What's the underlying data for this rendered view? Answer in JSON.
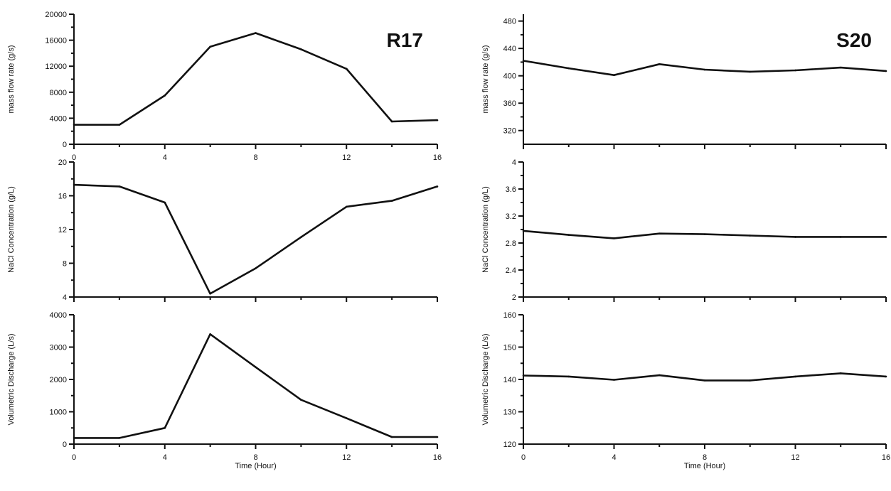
{
  "chart_data": [
    {
      "type": "line",
      "title": "R17",
      "xlabel": "",
      "ylabel": "mass flow rate (g/s)",
      "x": [
        0,
        2,
        4,
        6,
        8,
        10,
        12,
        14,
        16
      ],
      "xlim": [
        0,
        16
      ],
      "xticks": [
        "0",
        "4",
        "8",
        "12",
        "16"
      ],
      "ylim": [
        0,
        20000
      ],
      "yticks": [
        "0",
        "4000",
        "8000",
        "12000",
        "16000",
        "20000"
      ],
      "series": [
        {
          "values": [
            3000,
            3000,
            7500,
            15000,
            17100,
            14600,
            11600,
            3500,
            3700
          ]
        }
      ]
    },
    {
      "type": "line",
      "title": "",
      "xlabel": "",
      "ylabel": "NaCl Concentration (g/L)",
      "x": [
        0,
        2,
        4,
        6,
        8,
        10,
        12,
        14,
        16
      ],
      "xlim": [
        0,
        16
      ],
      "xticks": [],
      "ylim": [
        4,
        20
      ],
      "yticks": [
        "4",
        "8",
        "12",
        "16",
        "20"
      ],
      "series": [
        {
          "values": [
            17.3,
            17.1,
            15.2,
            4.4,
            7.4,
            11.1,
            14.7,
            15.4,
            17.1
          ]
        }
      ]
    },
    {
      "type": "line",
      "title": "",
      "xlabel": "Time (Hour)",
      "ylabel": "Volumetric Discharge (L/s)",
      "x": [
        0,
        2,
        4,
        6,
        8,
        10,
        12,
        14,
        16
      ],
      "xlim": [
        0,
        16
      ],
      "xticks": [
        "0",
        "4",
        "8",
        "12",
        "16"
      ],
      "ylim": [
        0,
        4000
      ],
      "yticks": [
        "0",
        "1000",
        "2000",
        "3000",
        "4000"
      ],
      "series": [
        {
          "values": [
            190,
            190,
            500,
            3400,
            2380,
            1370,
            800,
            220,
            220
          ]
        }
      ]
    },
    {
      "type": "line",
      "title": "S20",
      "xlabel": "",
      "ylabel": "mass flow rate (g/s)",
      "x": [
        0,
        2,
        4,
        6,
        8,
        10,
        12,
        14,
        16
      ],
      "xlim": [
        0,
        16
      ],
      "xticks": [],
      "ylim": [
        300,
        490
      ],
      "yticks": [
        "320",
        "360",
        "400",
        "440",
        "480"
      ],
      "series": [
        {
          "values": [
            422,
            411,
            401,
            417,
            409,
            406,
            408,
            412,
            407
          ]
        }
      ]
    },
    {
      "type": "line",
      "title": "",
      "xlabel": "",
      "ylabel": "NaCl Concentration (g/L)",
      "x": [
        0,
        2,
        4,
        6,
        8,
        10,
        12,
        14,
        16
      ],
      "xlim": [
        0,
        16
      ],
      "xticks": [],
      "ylim": [
        2,
        4
      ],
      "yticks": [
        "2",
        "2.4",
        "2.8",
        "3.2",
        "3.6",
        "4"
      ],
      "series": [
        {
          "values": [
            2.98,
            2.92,
            2.87,
            2.94,
            2.93,
            2.91,
            2.89,
            2.89,
            2.89
          ]
        }
      ]
    },
    {
      "type": "line",
      "title": "",
      "xlabel": "Time (Hour)",
      "ylabel": "Volumetric Discharge (L/s)",
      "x": [
        0,
        2,
        4,
        6,
        8,
        10,
        12,
        14,
        16
      ],
      "xlim": [
        0,
        16
      ],
      "xticks": [
        "0",
        "4",
        "8",
        "12",
        "16"
      ],
      "ylim": [
        120,
        160
      ],
      "yticks": [
        "120",
        "130",
        "140",
        "150",
        "160"
      ],
      "series": [
        {
          "values": [
            141.2,
            140.9,
            139.9,
            141.3,
            139.7,
            139.7,
            140.9,
            141.9,
            140.9
          ]
        }
      ]
    }
  ]
}
